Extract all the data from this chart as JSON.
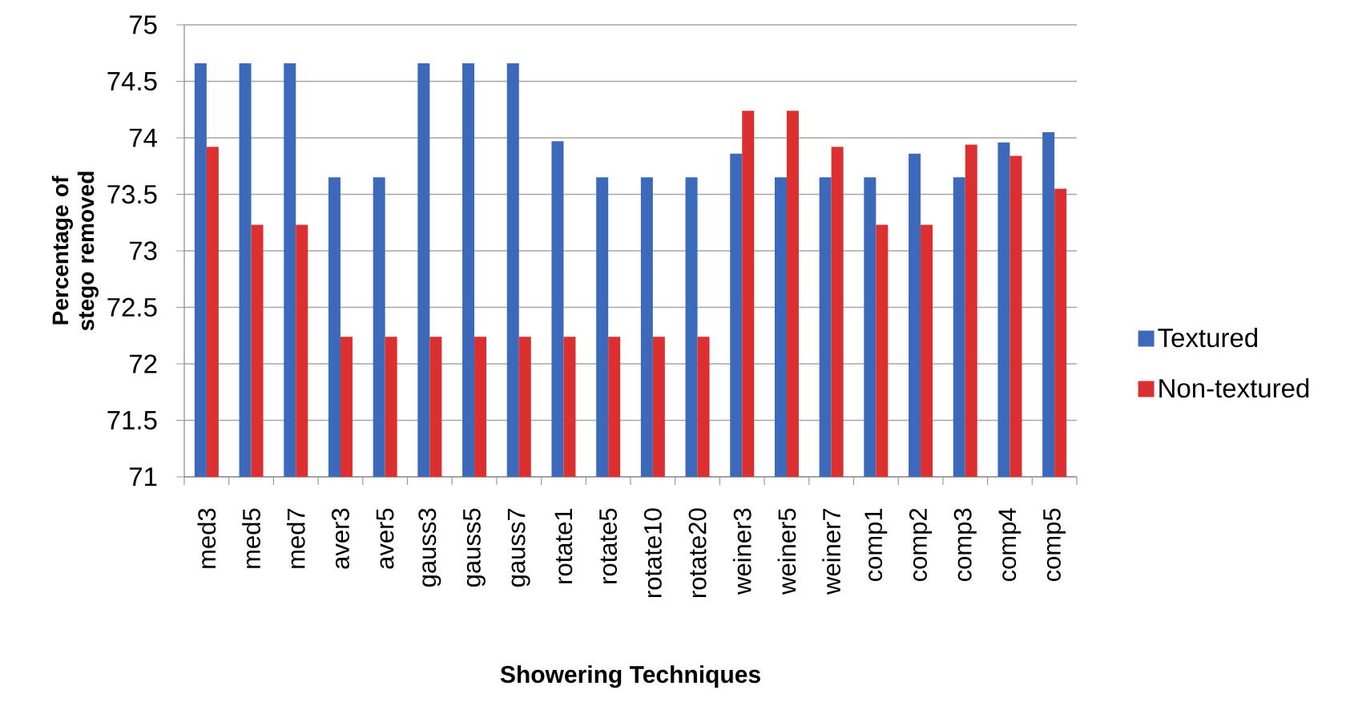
{
  "chart_data": {
    "type": "bar",
    "xlabel": "Showering Techniques",
    "ylabel": "Percentage of stego removed",
    "categories": [
      "med3",
      "med5",
      "med7",
      "aver3",
      "aver5",
      "gauss3",
      "gauss5",
      "gauss7",
      "rotate1",
      "rotate5",
      "rotate10",
      "rotate20",
      "weiner3",
      "weiner5",
      "weiner7",
      "comp1",
      "comp2",
      "comp3",
      "comp4",
      "comp5"
    ],
    "series": [
      {
        "name": "Textured",
        "color": "#3c69b9",
        "values": [
          74.66,
          74.66,
          74.66,
          73.65,
          73.65,
          74.66,
          74.66,
          74.66,
          73.97,
          73.65,
          73.65,
          73.65,
          73.86,
          73.65,
          73.65,
          73.65,
          73.86,
          73.65,
          73.96,
          74.05
        ]
      },
      {
        "name": "Non-textured",
        "color": "#dc3030",
        "values": [
          73.92,
          73.23,
          73.23,
          72.24,
          72.24,
          72.24,
          72.24,
          72.24,
          72.24,
          72.24,
          72.24,
          72.24,
          74.24,
          74.24,
          73.92,
          73.23,
          73.23,
          73.94,
          73.84,
          73.55
        ]
      }
    ],
    "ylim": [
      71,
      75
    ],
    "yticks": [
      71,
      71.5,
      72,
      72.5,
      73,
      73.5,
      74,
      74.5,
      75
    ],
    "grid": "y",
    "legend": "right"
  }
}
